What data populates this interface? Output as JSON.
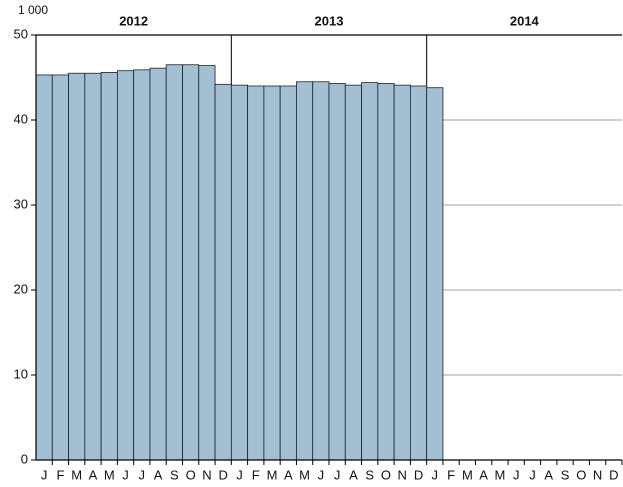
{
  "chart_data": {
    "type": "bar",
    "y_unit": "1 000",
    "years": [
      "2012",
      "2013",
      "2014"
    ],
    "categories": [
      "J",
      "F",
      "M",
      "A",
      "M",
      "J",
      "J",
      "A",
      "S",
      "O",
      "N",
      "D",
      "J",
      "F",
      "M",
      "A",
      "M",
      "J",
      "J",
      "A",
      "S",
      "O",
      "N",
      "D",
      "J",
      "F",
      "M",
      "A",
      "M",
      "J",
      "J",
      "A",
      "S",
      "O",
      "N",
      "D"
    ],
    "values": [
      45.3,
      45.3,
      45.5,
      45.5,
      45.6,
      45.8,
      45.9,
      46.1,
      46.5,
      46.5,
      46.4,
      44.2,
      44.1,
      44.0,
      44.0,
      44.0,
      44.5,
      44.5,
      44.3,
      44.1,
      44.4,
      44.3,
      44.1,
      44.0,
      43.8,
      null,
      null,
      null,
      null,
      null,
      null,
      null,
      null,
      null,
      null,
      null
    ],
    "color": "#a3bfd4",
    "ylim": [
      0,
      50
    ],
    "yticks": [
      0,
      10,
      20,
      30,
      40,
      50
    ],
    "grid": true
  }
}
